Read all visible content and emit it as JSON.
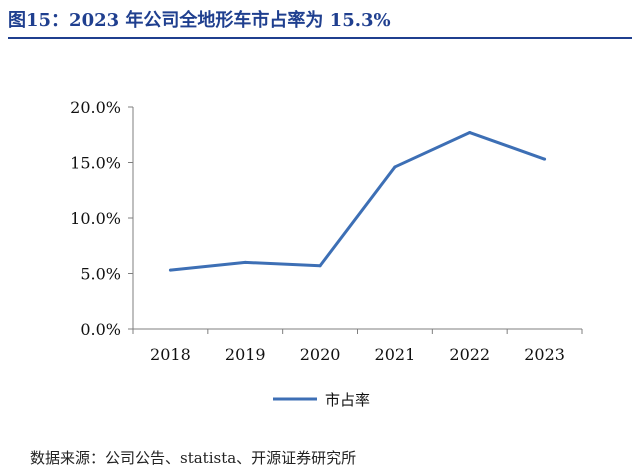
{
  "title": "图15：2023 年公司全地形车市占率为 15.3%",
  "source": "数据来源：公司公告、statista、开源证券研究所",
  "chart_data": {
    "type": "line",
    "categories": [
      "2018",
      "2019",
      "2020",
      "2021",
      "2022",
      "2023"
    ],
    "series": [
      {
        "name": "市占率",
        "values": [
          5.3,
          6.0,
          5.7,
          14.6,
          17.7,
          15.3
        ],
        "color": "#3d6fb5"
      }
    ],
    "y_ticks": [
      "0.0%",
      "5.0%",
      "10.0%",
      "15.0%",
      "20.0%"
    ],
    "ylim": [
      0,
      20
    ],
    "grid": false,
    "legend": "bottom-center"
  }
}
